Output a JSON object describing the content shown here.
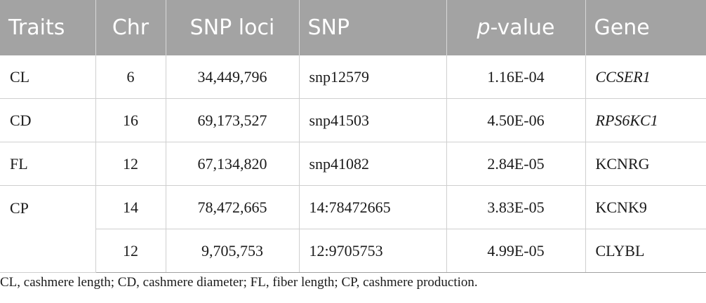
{
  "table": {
    "headers": {
      "traits": "Traits",
      "chr": "Chr",
      "snp_loci": "SNP loci",
      "snp": "SNP",
      "p_prefix": "p",
      "p_suffix": "-value",
      "gene": "Gene"
    },
    "rows": [
      {
        "trait": "CL",
        "chr": "6",
        "loci": "34,449,796",
        "snp": "snp12579",
        "p": "1.16E-04",
        "gene": "CCSER1"
      },
      {
        "trait": "CD",
        "chr": "16",
        "loci": "69,173,527",
        "snp": "snp41503",
        "p": "4.50E-06",
        "gene": "RPS6KC1"
      },
      {
        "trait": "FL",
        "chr": "12",
        "loci": "67,134,820",
        "snp": "snp41082",
        "p": "2.84E-05",
        "gene": "KCNRG"
      },
      {
        "trait": "CP",
        "chr": "14",
        "loci": "78,472,665",
        "snp": "14:78472665",
        "p": "3.83E-05",
        "gene": "KCNK9"
      },
      {
        "chr": "12",
        "loci": "9,705,753",
        "snp": "12:9705753",
        "p": "4.99E-05",
        "gene": "CLYBL"
      }
    ]
  },
  "footnote": "CL, cashmere length; CD, cashmere diameter; FL, fiber length; CP, cashmere production."
}
